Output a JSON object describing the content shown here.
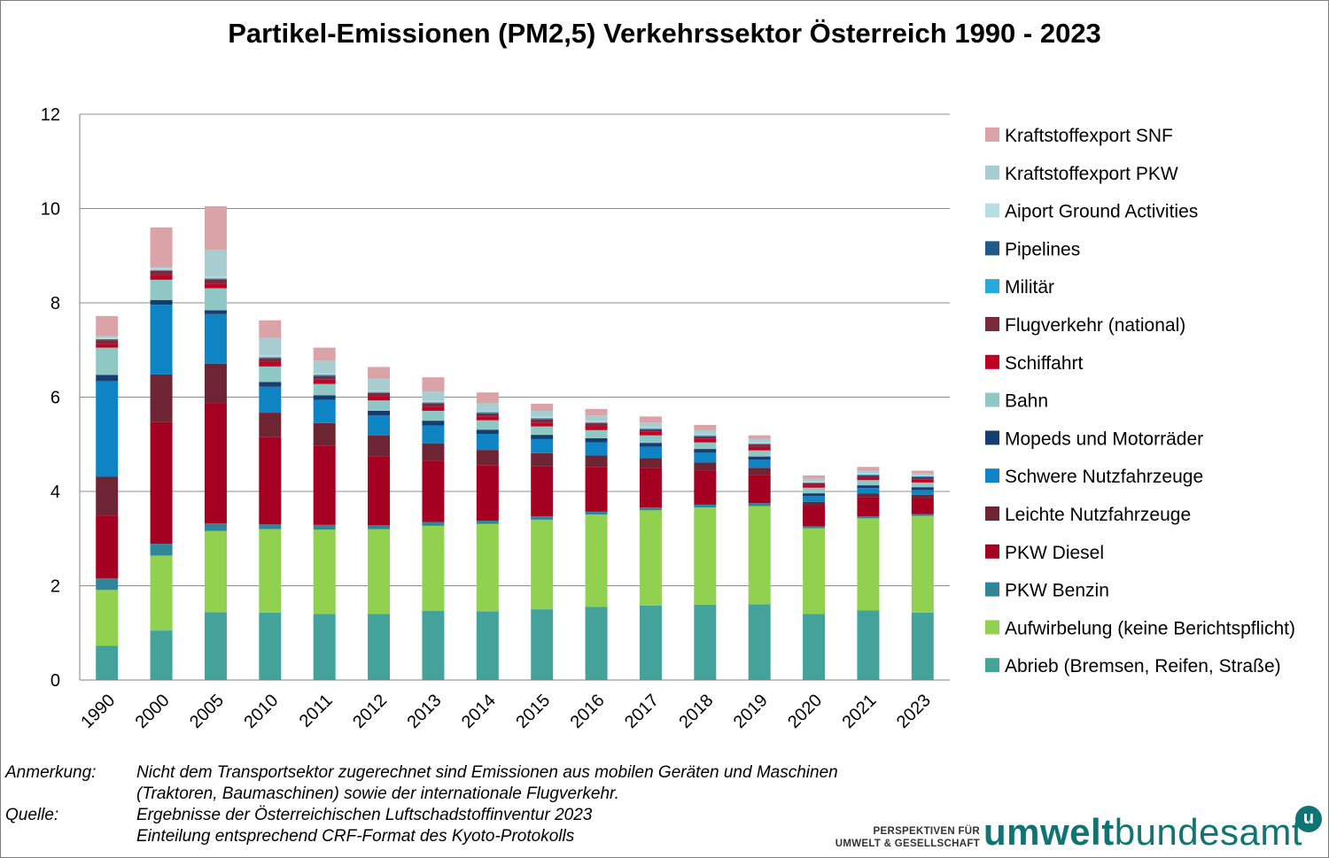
{
  "title": "Partikel-Emissionen (PM2,5) Verkehrssektor Österreich 1990 - 2023",
  "chart_data": {
    "type": "bar",
    "stacked": true,
    "title": "Partikel-Emissionen (PM2,5) Verkehrssektor Österreich 1990 - 2023",
    "xlabel": "",
    "ylabel": "",
    "ylim": [
      0,
      12
    ],
    "yticks": [
      "0",
      "2",
      "4",
      "6",
      "8",
      "10",
      "12"
    ],
    "grid": true,
    "legend_position": "right",
    "categories": [
      "1990",
      "2000",
      "2005",
      "2010",
      "2011",
      "2012",
      "2013",
      "2014",
      "2015",
      "2016",
      "2017",
      "2018",
      "2019",
      "2020",
      "2021",
      "2023"
    ],
    "series": [
      {
        "name": "Abrieb (Bremsen, Reifen, Straße)",
        "color": "#43a39b",
        "values": [
          0.73,
          1.05,
          1.44,
          1.43,
          1.4,
          1.4,
          1.47,
          1.46,
          1.5,
          1.55,
          1.58,
          1.6,
          1.61,
          1.4,
          1.48,
          1.43
        ]
      },
      {
        "name": "Aufwirbelung (keine Berichtspflicht)",
        "color": "#92d050",
        "values": [
          1.18,
          1.59,
          1.72,
          1.77,
          1.79,
          1.8,
          1.8,
          1.85,
          1.9,
          1.96,
          2.02,
          2.06,
          2.08,
          1.82,
          1.95,
          2.05
        ]
      },
      {
        "name": "PKW Benzin",
        "color": "#31859b",
        "values": [
          0.25,
          0.25,
          0.16,
          0.1,
          0.1,
          0.08,
          0.08,
          0.07,
          0.07,
          0.06,
          0.06,
          0.06,
          0.06,
          0.04,
          0.04,
          0.04
        ]
      },
      {
        "name": "PKW Diesel",
        "color": "#a50021",
        "values": [
          1.33,
          2.58,
          2.55,
          1.85,
          1.67,
          1.46,
          1.3,
          1.17,
          1.06,
          0.95,
          0.84,
          0.72,
          0.6,
          0.43,
          0.4,
          0.34
        ]
      },
      {
        "name": "Leichte Nutzfahrzeuge",
        "color": "#6e2433",
        "values": [
          0.82,
          1.01,
          0.84,
          0.52,
          0.49,
          0.45,
          0.37,
          0.33,
          0.28,
          0.24,
          0.21,
          0.17,
          0.15,
          0.09,
          0.09,
          0.07
        ]
      },
      {
        "name": "Schwere Nutzfahrzeuge",
        "color": "#0e84c4",
        "values": [
          2.03,
          1.48,
          1.05,
          0.55,
          0.49,
          0.42,
          0.38,
          0.34,
          0.3,
          0.28,
          0.24,
          0.21,
          0.17,
          0.12,
          0.11,
          0.1
        ]
      },
      {
        "name": "Mopeds und Motorräder",
        "color": "#173d6e",
        "values": [
          0.13,
          0.1,
          0.08,
          0.1,
          0.1,
          0.1,
          0.1,
          0.09,
          0.09,
          0.09,
          0.08,
          0.08,
          0.07,
          0.06,
          0.06,
          0.06
        ]
      },
      {
        "name": "Bahn",
        "color": "#8ec7c4",
        "values": [
          0.58,
          0.43,
          0.47,
          0.33,
          0.24,
          0.22,
          0.21,
          0.2,
          0.18,
          0.17,
          0.16,
          0.14,
          0.13,
          0.12,
          0.11,
          0.1
        ]
      },
      {
        "name": "Schiffahrt",
        "color": "#c00024",
        "values": [
          0.08,
          0.1,
          0.1,
          0.1,
          0.09,
          0.09,
          0.09,
          0.08,
          0.08,
          0.08,
          0.07,
          0.07,
          0.07,
          0.05,
          0.06,
          0.06
        ]
      },
      {
        "name": "Flugverkehr (national)",
        "color": "#7a2a3c",
        "values": [
          0.08,
          0.09,
          0.09,
          0.08,
          0.08,
          0.07,
          0.07,
          0.07,
          0.07,
          0.07,
          0.06,
          0.06,
          0.06,
          0.04,
          0.04,
          0.05
        ]
      },
      {
        "name": "Militär",
        "color": "#2aa8dc",
        "values": [
          0.01,
          0.01,
          0.01,
          0.01,
          0.01,
          0.01,
          0.01,
          0.01,
          0.01,
          0.01,
          0.01,
          0.01,
          0.01,
          0.01,
          0.01,
          0.01
        ]
      },
      {
        "name": "Pipelines",
        "color": "#1f5a86",
        "values": [
          0.01,
          0.01,
          0.01,
          0.01,
          0.01,
          0.01,
          0.01,
          0.01,
          0.01,
          0.01,
          0.01,
          0.01,
          0.01,
          0.01,
          0.01,
          0.01
        ]
      },
      {
        "name": "Aiport Ground Activities",
        "color": "#b7dde3",
        "values": [
          0.03,
          0.03,
          0.03,
          0.03,
          0.03,
          0.03,
          0.03,
          0.03,
          0.03,
          0.03,
          0.03,
          0.03,
          0.03,
          0.02,
          0.02,
          0.02
        ]
      },
      {
        "name": "Kraftstoffexport PKW",
        "color": "#a8cdd1",
        "values": [
          0.03,
          0.03,
          0.57,
          0.38,
          0.28,
          0.25,
          0.2,
          0.16,
          0.13,
          0.11,
          0.09,
          0.08,
          0.06,
          0.06,
          0.06,
          0.04
        ]
      },
      {
        "name": "Kraftstoffexport SNF",
        "color": "#d9a3a8",
        "values": [
          0.43,
          0.84,
          0.93,
          0.37,
          0.27,
          0.25,
          0.3,
          0.23,
          0.15,
          0.14,
          0.13,
          0.11,
          0.08,
          0.07,
          0.08,
          0.06
        ]
      }
    ]
  },
  "notes": {
    "anmerkung_key": "Anmerkung:",
    "anmerkung_line1": "Nicht dem Transportsektor zugerechnet sind Emissionen aus mobilen Geräten und Maschinen",
    "anmerkung_line2": "(Traktoren, Baumaschinen) sowie der internationale Flugverkehr.",
    "quelle_key": "Quelle:",
    "quelle_line1": "Ergebnisse der Österreichischen Luftschadstoffinventur 2023",
    "quelle_line2": "Einteilung entsprechend CRF-Format des Kyoto-Protokolls"
  },
  "logo": {
    "tagline_line1": "PERSPEKTIVEN FÜR",
    "tagline_line2": "UMWELT & GESELLSCHAFT",
    "wordmark_part1": "umwelt",
    "wordmark_part2": "bundesamt",
    "badge": "u",
    "color": "#0f7473"
  }
}
